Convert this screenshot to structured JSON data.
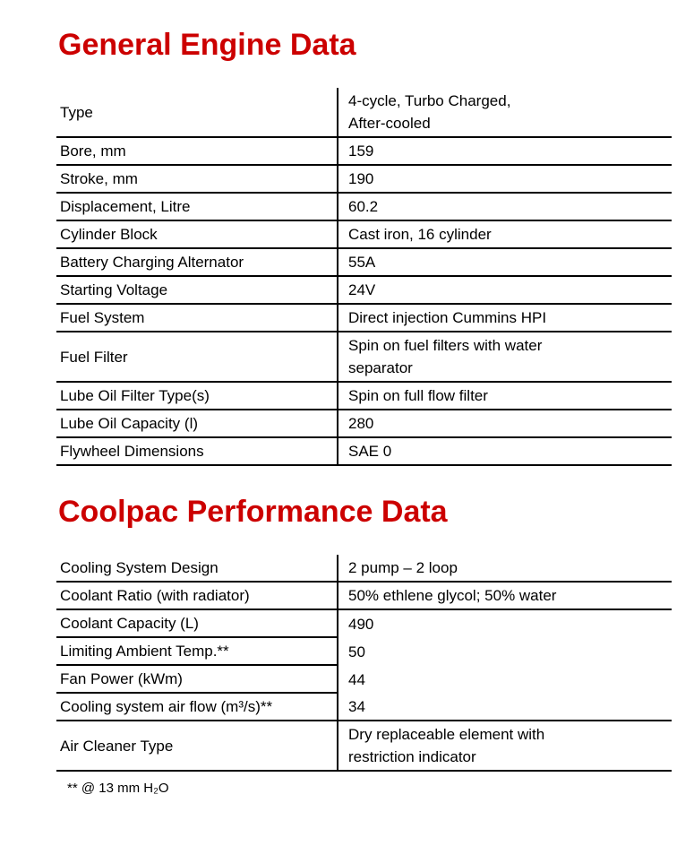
{
  "document": {
    "accent_color": "#cc0000",
    "sections": [
      {
        "title": "General Engine Data",
        "rows": [
          {
            "label": "Type",
            "value": "4-cycle, Turbo Charged,\nAfter-cooled"
          },
          {
            "label": "Bore, mm",
            "value": "159"
          },
          {
            "label": "Stroke, mm",
            "value": "190"
          },
          {
            "label": "Displacement, Litre",
            "value": "60.2"
          },
          {
            "label": "Cylinder Block",
            "value": "Cast iron, 16 cylinder"
          },
          {
            "label": "Battery Charging Alternator",
            "value": "55A"
          },
          {
            "label": "Starting Voltage",
            "value": "24V"
          },
          {
            "label": "Fuel System",
            "value": "Direct injection Cummins HPI"
          },
          {
            "label": "Fuel Filter",
            "value": "Spin on fuel filters with water\nseparator"
          },
          {
            "label": "Lube Oil Filter Type(s)",
            "value": "Spin on full flow filter"
          },
          {
            "label": "Lube Oil Capacity (l)",
            "value": "280"
          },
          {
            "label": "Flywheel Dimensions",
            "value": "SAE 0"
          }
        ]
      },
      {
        "title": "Coolpac Performance Data",
        "rows": [
          {
            "label": "Cooling System Design",
            "value": "2 pump – 2 loop"
          },
          {
            "label": "Coolant Ratio (with radiator)",
            "value": "50% ethlene glycol; 50% water"
          },
          {
            "label": "Coolant Capacity (L)",
            "value": "490"
          },
          {
            "label": "Limiting Ambient Temp.**",
            "value": "50"
          },
          {
            "label": "Fan Power (kWm)",
            "value": "44"
          },
          {
            "label": "Cooling system air flow (m³/s)**",
            "value": "34"
          },
          {
            "label": "Air Cleaner Type",
            "value": "Dry replaceable element with\nrestriction indicator"
          }
        ]
      }
    ],
    "footnote": "** @ 13 mm H₂O"
  }
}
